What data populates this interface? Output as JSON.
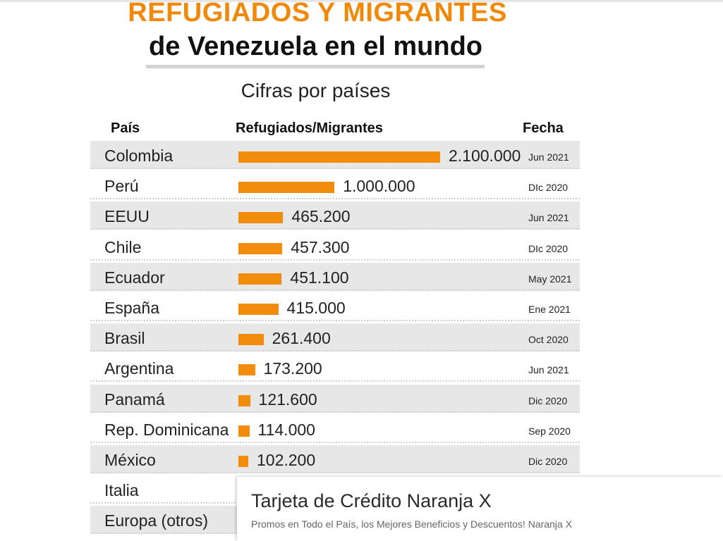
{
  "header": {
    "title_line1": "REFUGIADOS Y MIGRANTES",
    "title_line2": "de Venezuela en el mundo",
    "subtitle": "Cifras por países"
  },
  "columns": {
    "country": "País",
    "value": "Refugiados/Migrantes",
    "date": "Fecha"
  },
  "chart_data": {
    "type": "bar",
    "orientation": "horizontal",
    "title": "REFUGIADOS Y MIGRANTES de Venezuela en el mundo",
    "subtitle": "Cifras por países",
    "bar_color": "#f28c0c",
    "categories": [
      "Colombia",
      "Perú",
      "EEUU",
      "Chile",
      "Ecuador",
      "España",
      "Brasil",
      "Argentina",
      "Panamá",
      "Rep. Dominicana",
      "México",
      "Italia",
      "Europa (otros)"
    ],
    "values": [
      2100000,
      1000000,
      465200,
      457300,
      451100,
      415000,
      261400,
      173200,
      121600,
      114000,
      102200,
      null,
      null
    ],
    "value_labels": [
      "2.100.000",
      "1.000.000",
      "465.200",
      "457.300",
      "451.100",
      "415.000",
      "261.400",
      "173.200",
      "121.600",
      "114.000",
      "102.200",
      "",
      ""
    ],
    "dates": [
      "Jun 2021",
      "DIc 2020",
      "Jun 2021",
      "DIc 2020",
      "May 2021",
      "Ene 2021",
      "Oct 2020",
      "Jun 2021",
      "Dic 2020",
      "Sep 2020",
      "Dic 2020",
      "",
      ""
    ],
    "shaded": [
      true,
      false,
      true,
      false,
      true,
      false,
      true,
      false,
      true,
      false,
      true,
      false,
      true
    ],
    "xlim": [
      0,
      2100000
    ]
  },
  "ad": {
    "title": "Tarjeta de Crédito Naranja X",
    "description": "Promos en Todo el País, los Mejores Beneficios y Descuentos! Naranja X"
  }
}
